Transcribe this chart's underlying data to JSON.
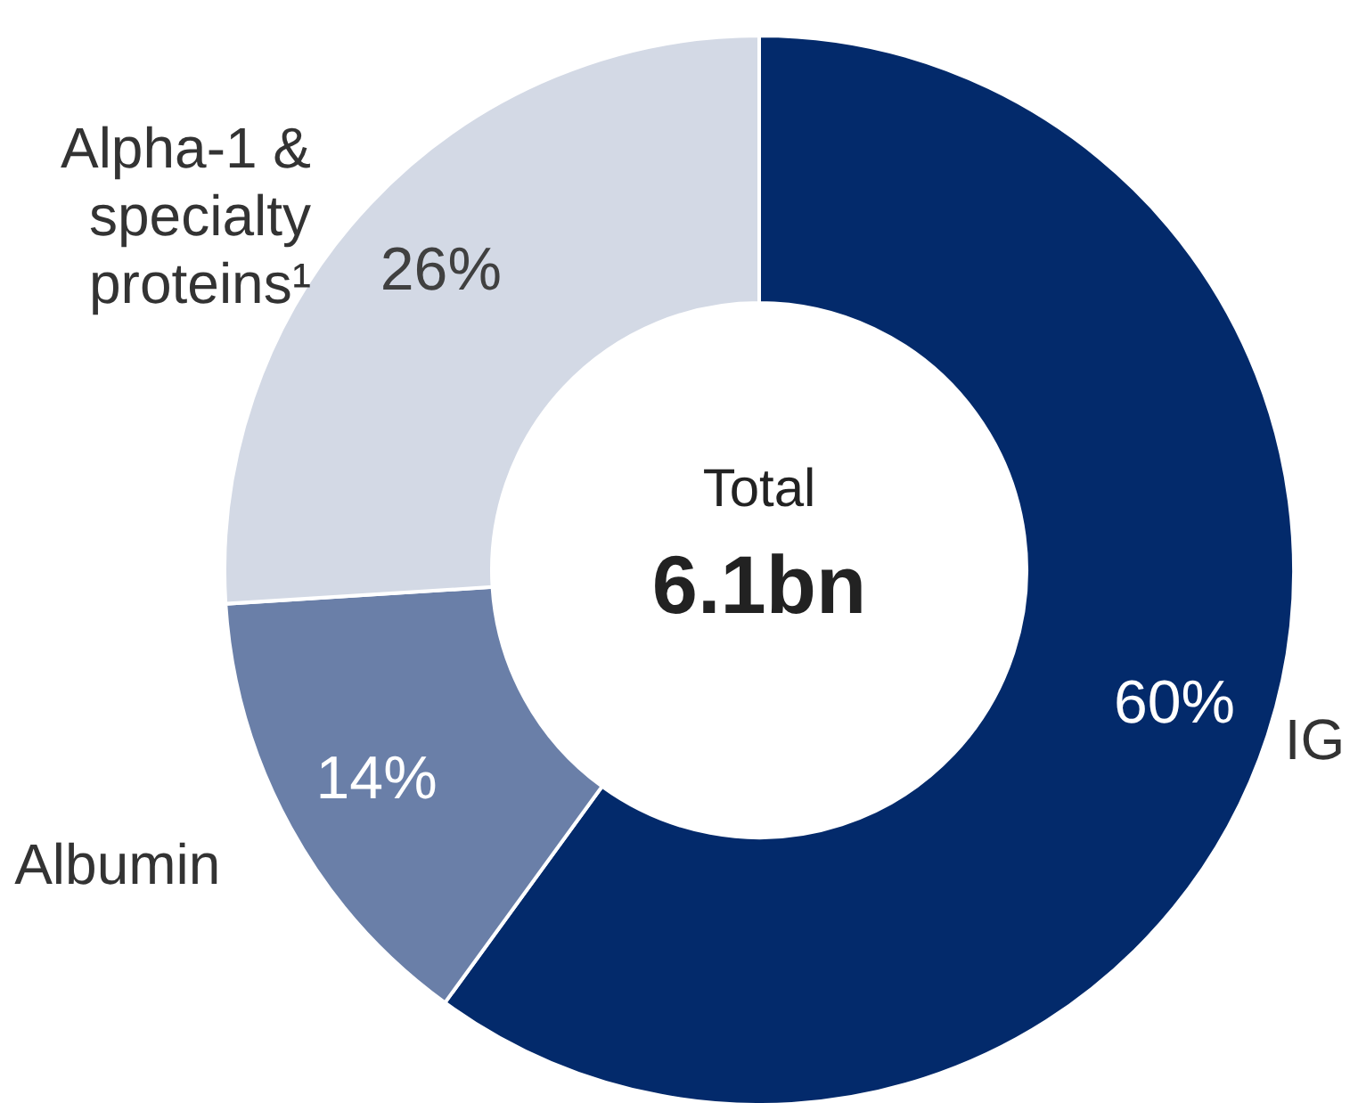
{
  "chart_data": {
    "type": "donut",
    "categories": [
      "IG",
      "Albumin",
      "Alpha-1 & specialty proteins¹"
    ],
    "values": [
      60,
      14,
      26
    ],
    "colors": [
      "#032a6b",
      "#6a7fa8",
      "#d3d9e5"
    ],
    "value_labels": [
      "60%",
      "14%",
      "26%"
    ],
    "annotations": [
      "Total",
      "6.1bn"
    ]
  }
}
